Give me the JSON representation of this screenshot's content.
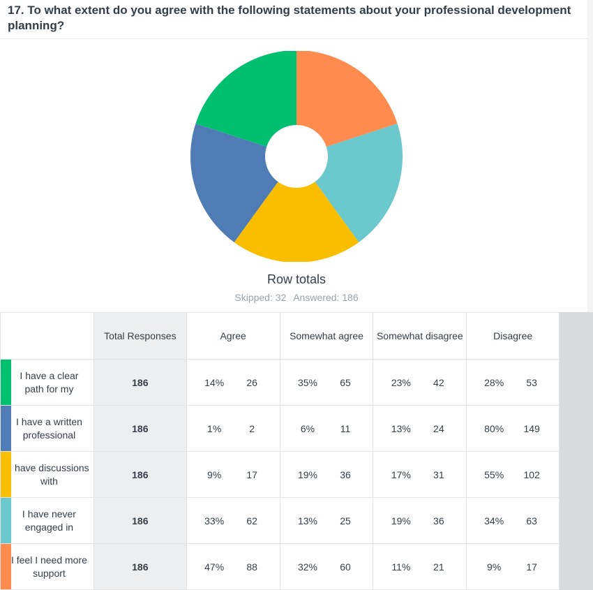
{
  "question": {
    "title": "17. To what extent do you agree with the following statements about your professional development planning?"
  },
  "chart_title": "Row totals",
  "stats": {
    "skipped": "Skipped: 32",
    "answered": "Answered: 186"
  },
  "table": {
    "headers": [
      "",
      "Total Responses",
      "Agree",
      "Somewhat agree",
      "Somewhat disagree",
      "Disagree"
    ],
    "rows": [
      {
        "label": "I have a clear path for my",
        "color": "#00bf6f",
        "total": "186",
        "cells": [
          {
            "pct": "14%",
            "count": "26"
          },
          {
            "pct": "35%",
            "count": "65"
          },
          {
            "pct": "23%",
            "count": "42"
          },
          {
            "pct": "28%",
            "count": "53"
          }
        ]
      },
      {
        "label": "I have a written professional",
        "color": "#507cb6",
        "total": "186",
        "cells": [
          {
            "pct": "1%",
            "count": "2"
          },
          {
            "pct": "6%",
            "count": "11"
          },
          {
            "pct": "13%",
            "count": "24"
          },
          {
            "pct": "80%",
            "count": "149"
          }
        ]
      },
      {
        "label": "I have discussions with",
        "color": "#f9be00",
        "total": "186",
        "cells": [
          {
            "pct": "9%",
            "count": "17"
          },
          {
            "pct": "19%",
            "count": "36"
          },
          {
            "pct": "17%",
            "count": "31"
          },
          {
            "pct": "55%",
            "count": "102"
          }
        ]
      },
      {
        "label": "I have never engaged in",
        "color": "#6bc8cd",
        "total": "186",
        "cells": [
          {
            "pct": "33%",
            "count": "62"
          },
          {
            "pct": "13%",
            "count": "25"
          },
          {
            "pct": "19%",
            "count": "36"
          },
          {
            "pct": "34%",
            "count": "63"
          }
        ]
      },
      {
        "label": "I feel I need more support",
        "color": "#ff8b4f",
        "total": "186",
        "cells": [
          {
            "pct": "47%",
            "count": "88"
          },
          {
            "pct": "32%",
            "count": "60"
          },
          {
            "pct": "11%",
            "count": "21"
          },
          {
            "pct": "9%",
            "count": "17"
          }
        ]
      }
    ]
  },
  "chart_data": {
    "type": "pie",
    "title": "Row totals",
    "slices": [
      {
        "label": "I feel I need more support",
        "value": 186,
        "color": "#ff8b4f"
      },
      {
        "label": "I have never engaged in",
        "value": 186,
        "color": "#6bc8cd"
      },
      {
        "label": "I have discussions with",
        "value": 186,
        "color": "#f9be00"
      },
      {
        "label": "I have a written professional",
        "value": 186,
        "color": "#507cb6"
      },
      {
        "label": "I have a clear path for my",
        "value": 186,
        "color": "#00bf6f"
      }
    ],
    "donut": true
  }
}
